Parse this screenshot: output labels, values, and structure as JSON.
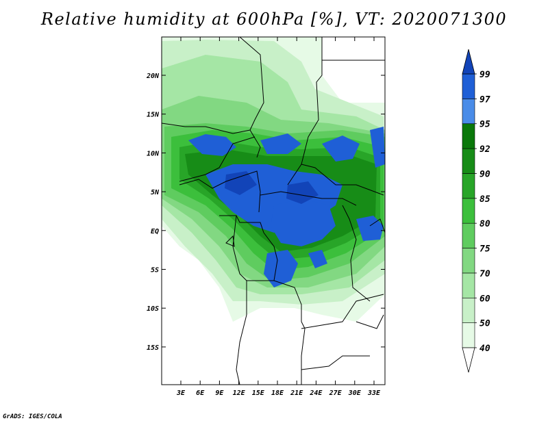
{
  "title": "Relative humidity at 600hPa [%], VT: 2020071300",
  "credit": "GrADS: IGES/COLA",
  "map": {
    "lat_labels": [
      "20N",
      "15N",
      "10N",
      "5N",
      "EQ",
      "5S",
      "10S",
      "15S"
    ],
    "lon_labels": [
      "3E",
      "6E",
      "9E",
      "12E",
      "15E",
      "18E",
      "21E",
      "24E",
      "27E",
      "30E",
      "33E"
    ]
  },
  "colorbar": {
    "levels": [
      "40",
      "50",
      "60",
      "70",
      "75",
      "80",
      "85",
      "90",
      "92",
      "95",
      "97",
      "99"
    ],
    "colors": [
      "#e6fae6",
      "#c8f0c8",
      "#a5e6a5",
      "#82d882",
      "#5fcc5f",
      "#3cbf3c",
      "#28a528",
      "#178c17",
      "#0a780a",
      "#4a8ce8",
      "#1f5fd6",
      "#1244b8"
    ]
  }
}
